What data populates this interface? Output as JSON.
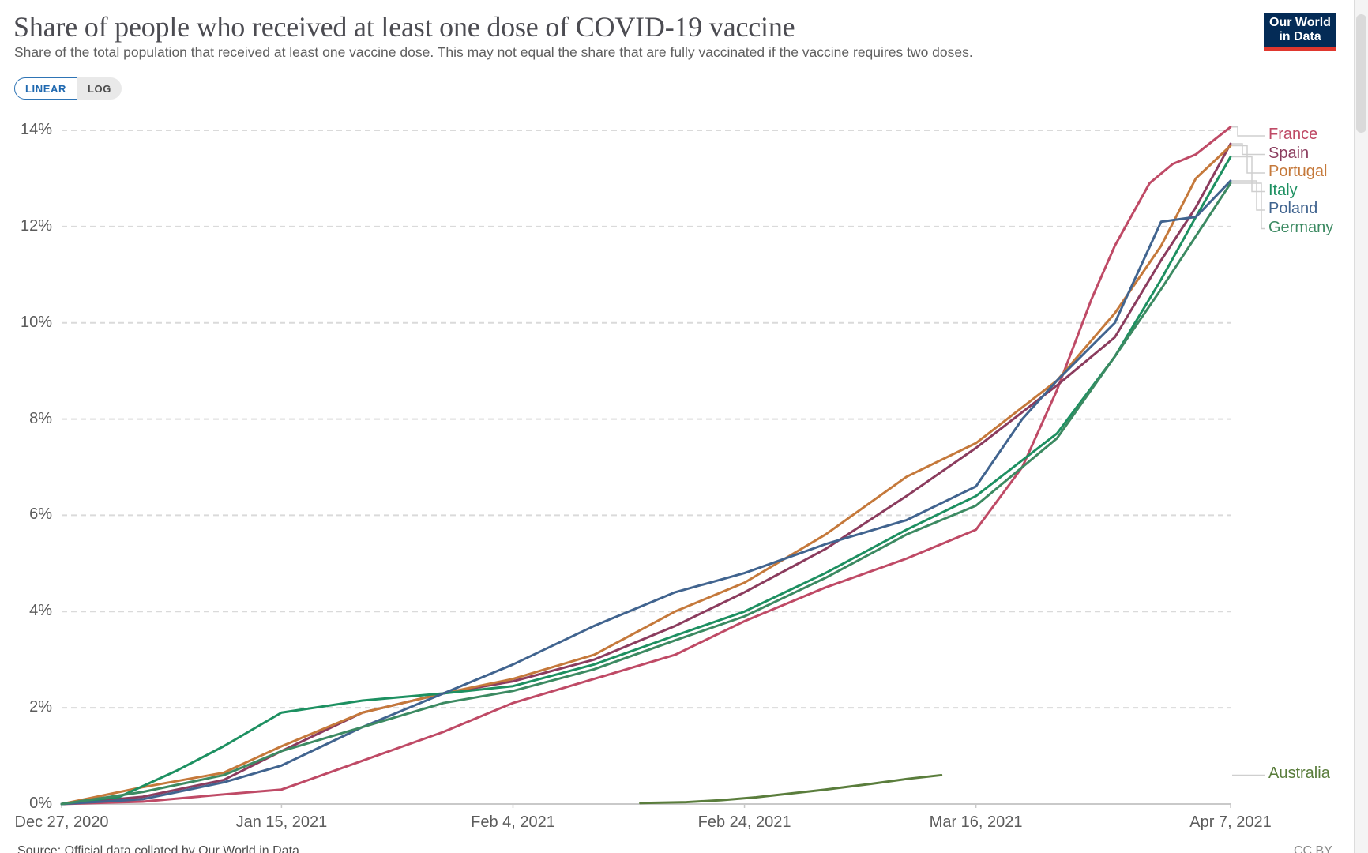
{
  "header": {
    "title": "Share of people who received at least one dose of COVID-19 vaccine",
    "subtitle": "Share of the total population that received at least one vaccine dose. This may not equal the share that are fully vaccinated if the vaccine requires two doses.",
    "logo": {
      "line1": "Our World",
      "line2": "in Data",
      "bg_color": "#042b56",
      "accent_color": "#e0372e"
    }
  },
  "controls": {
    "linear_label": "LINEAR",
    "log_label": "LOG",
    "active": "LINEAR",
    "accent_color": "#2069b0"
  },
  "footer": {
    "source": "Source: Official data collated by Our World in Data",
    "license": "CC BY"
  },
  "chart_data": {
    "type": "line",
    "title": "Share of people who received at least one dose of COVID-19 vaccine",
    "grid": true,
    "legend_position": "right",
    "x_axis": {
      "unit": "date",
      "total_days": 101,
      "ticks": [
        {
          "label": "Dec 27, 2020",
          "day": 0
        },
        {
          "label": "Jan 15, 2021",
          "day": 19
        },
        {
          "label": "Feb 4, 2021",
          "day": 39
        },
        {
          "label": "Feb 24, 2021",
          "day": 59
        },
        {
          "label": "Mar 16, 2021",
          "day": 79
        },
        {
          "label": "Apr 7, 2021",
          "day": 101
        }
      ]
    },
    "y_axis": {
      "min": 0,
      "max": 14,
      "tick_step": 2,
      "suffix": "%"
    },
    "series": [
      {
        "name": "France",
        "color": "#bf4a66",
        "days": [
          0,
          7,
          14,
          19,
          26,
          33,
          39,
          46,
          53,
          59,
          66,
          73,
          79,
          83,
          86,
          89,
          91,
          94,
          96,
          98,
          101
        ],
        "values": [
          0,
          0.05,
          0.2,
          0.3,
          0.9,
          1.5,
          2.1,
          2.6,
          3.1,
          3.8,
          4.5,
          5.1,
          5.7,
          7.0,
          8.6,
          10.5,
          11.6,
          12.9,
          13.3,
          13.5,
          14.07
        ]
      },
      {
        "name": "Spain",
        "color": "#8b3c5e",
        "days": [
          0,
          7,
          14,
          19,
          26,
          33,
          39,
          46,
          53,
          59,
          66,
          73,
          79,
          86,
          91,
          95,
          98,
          101
        ],
        "values": [
          0,
          0.15,
          0.5,
          1.1,
          1.9,
          2.3,
          2.55,
          3.0,
          3.7,
          4.4,
          5.3,
          6.4,
          7.4,
          8.7,
          9.7,
          11.3,
          12.4,
          13.72
        ]
      },
      {
        "name": "Portugal",
        "color": "#c5793b",
        "days": [
          0,
          7,
          14,
          19,
          26,
          33,
          39,
          46,
          53,
          59,
          66,
          73,
          79,
          86,
          91,
          95,
          98,
          101
        ],
        "values": [
          0,
          0.35,
          0.65,
          1.2,
          1.9,
          2.3,
          2.6,
          3.1,
          4.0,
          4.6,
          5.6,
          6.8,
          7.5,
          8.8,
          10.2,
          11.6,
          13.0,
          13.68
        ]
      },
      {
        "name": "Italy",
        "color": "#1d9061",
        "days": [
          0,
          5,
          10,
          14,
          19,
          26,
          33,
          39,
          46,
          53,
          59,
          66,
          73,
          79,
          86,
          91,
          95,
          98,
          101
        ],
        "values": [
          0,
          0.15,
          0.7,
          1.2,
          1.9,
          2.15,
          2.3,
          2.45,
          2.9,
          3.5,
          4.0,
          4.8,
          5.7,
          6.4,
          7.7,
          9.3,
          10.9,
          12.2,
          13.45
        ]
      },
      {
        "name": "Poland",
        "color": "#41648f",
        "days": [
          0,
          7,
          14,
          19,
          26,
          33,
          39,
          46,
          53,
          59,
          66,
          73,
          79,
          83,
          86,
          91,
          95,
          98,
          101
        ],
        "values": [
          0,
          0.1,
          0.45,
          0.8,
          1.6,
          2.3,
          2.9,
          3.7,
          4.4,
          4.8,
          5.4,
          5.9,
          6.6,
          8.0,
          8.8,
          10.0,
          12.1,
          12.2,
          12.95
        ]
      },
      {
        "name": "Germany",
        "color": "#3c8a62",
        "days": [
          0,
          7,
          14,
          19,
          26,
          33,
          39,
          46,
          53,
          59,
          66,
          73,
          79,
          86,
          91,
          95,
          98,
          101
        ],
        "values": [
          0,
          0.25,
          0.6,
          1.1,
          1.6,
          2.1,
          2.35,
          2.8,
          3.4,
          3.9,
          4.7,
          5.6,
          6.2,
          7.6,
          9.3,
          10.7,
          11.8,
          12.9
        ]
      },
      {
        "name": "Australia",
        "color": "#5a7d3c",
        "days": [
          50,
          54,
          57,
          60,
          63,
          66,
          70,
          73,
          76
        ],
        "values": [
          0.02,
          0.04,
          0.08,
          0.14,
          0.22,
          0.3,
          0.42,
          0.52,
          0.6
        ]
      }
    ]
  }
}
